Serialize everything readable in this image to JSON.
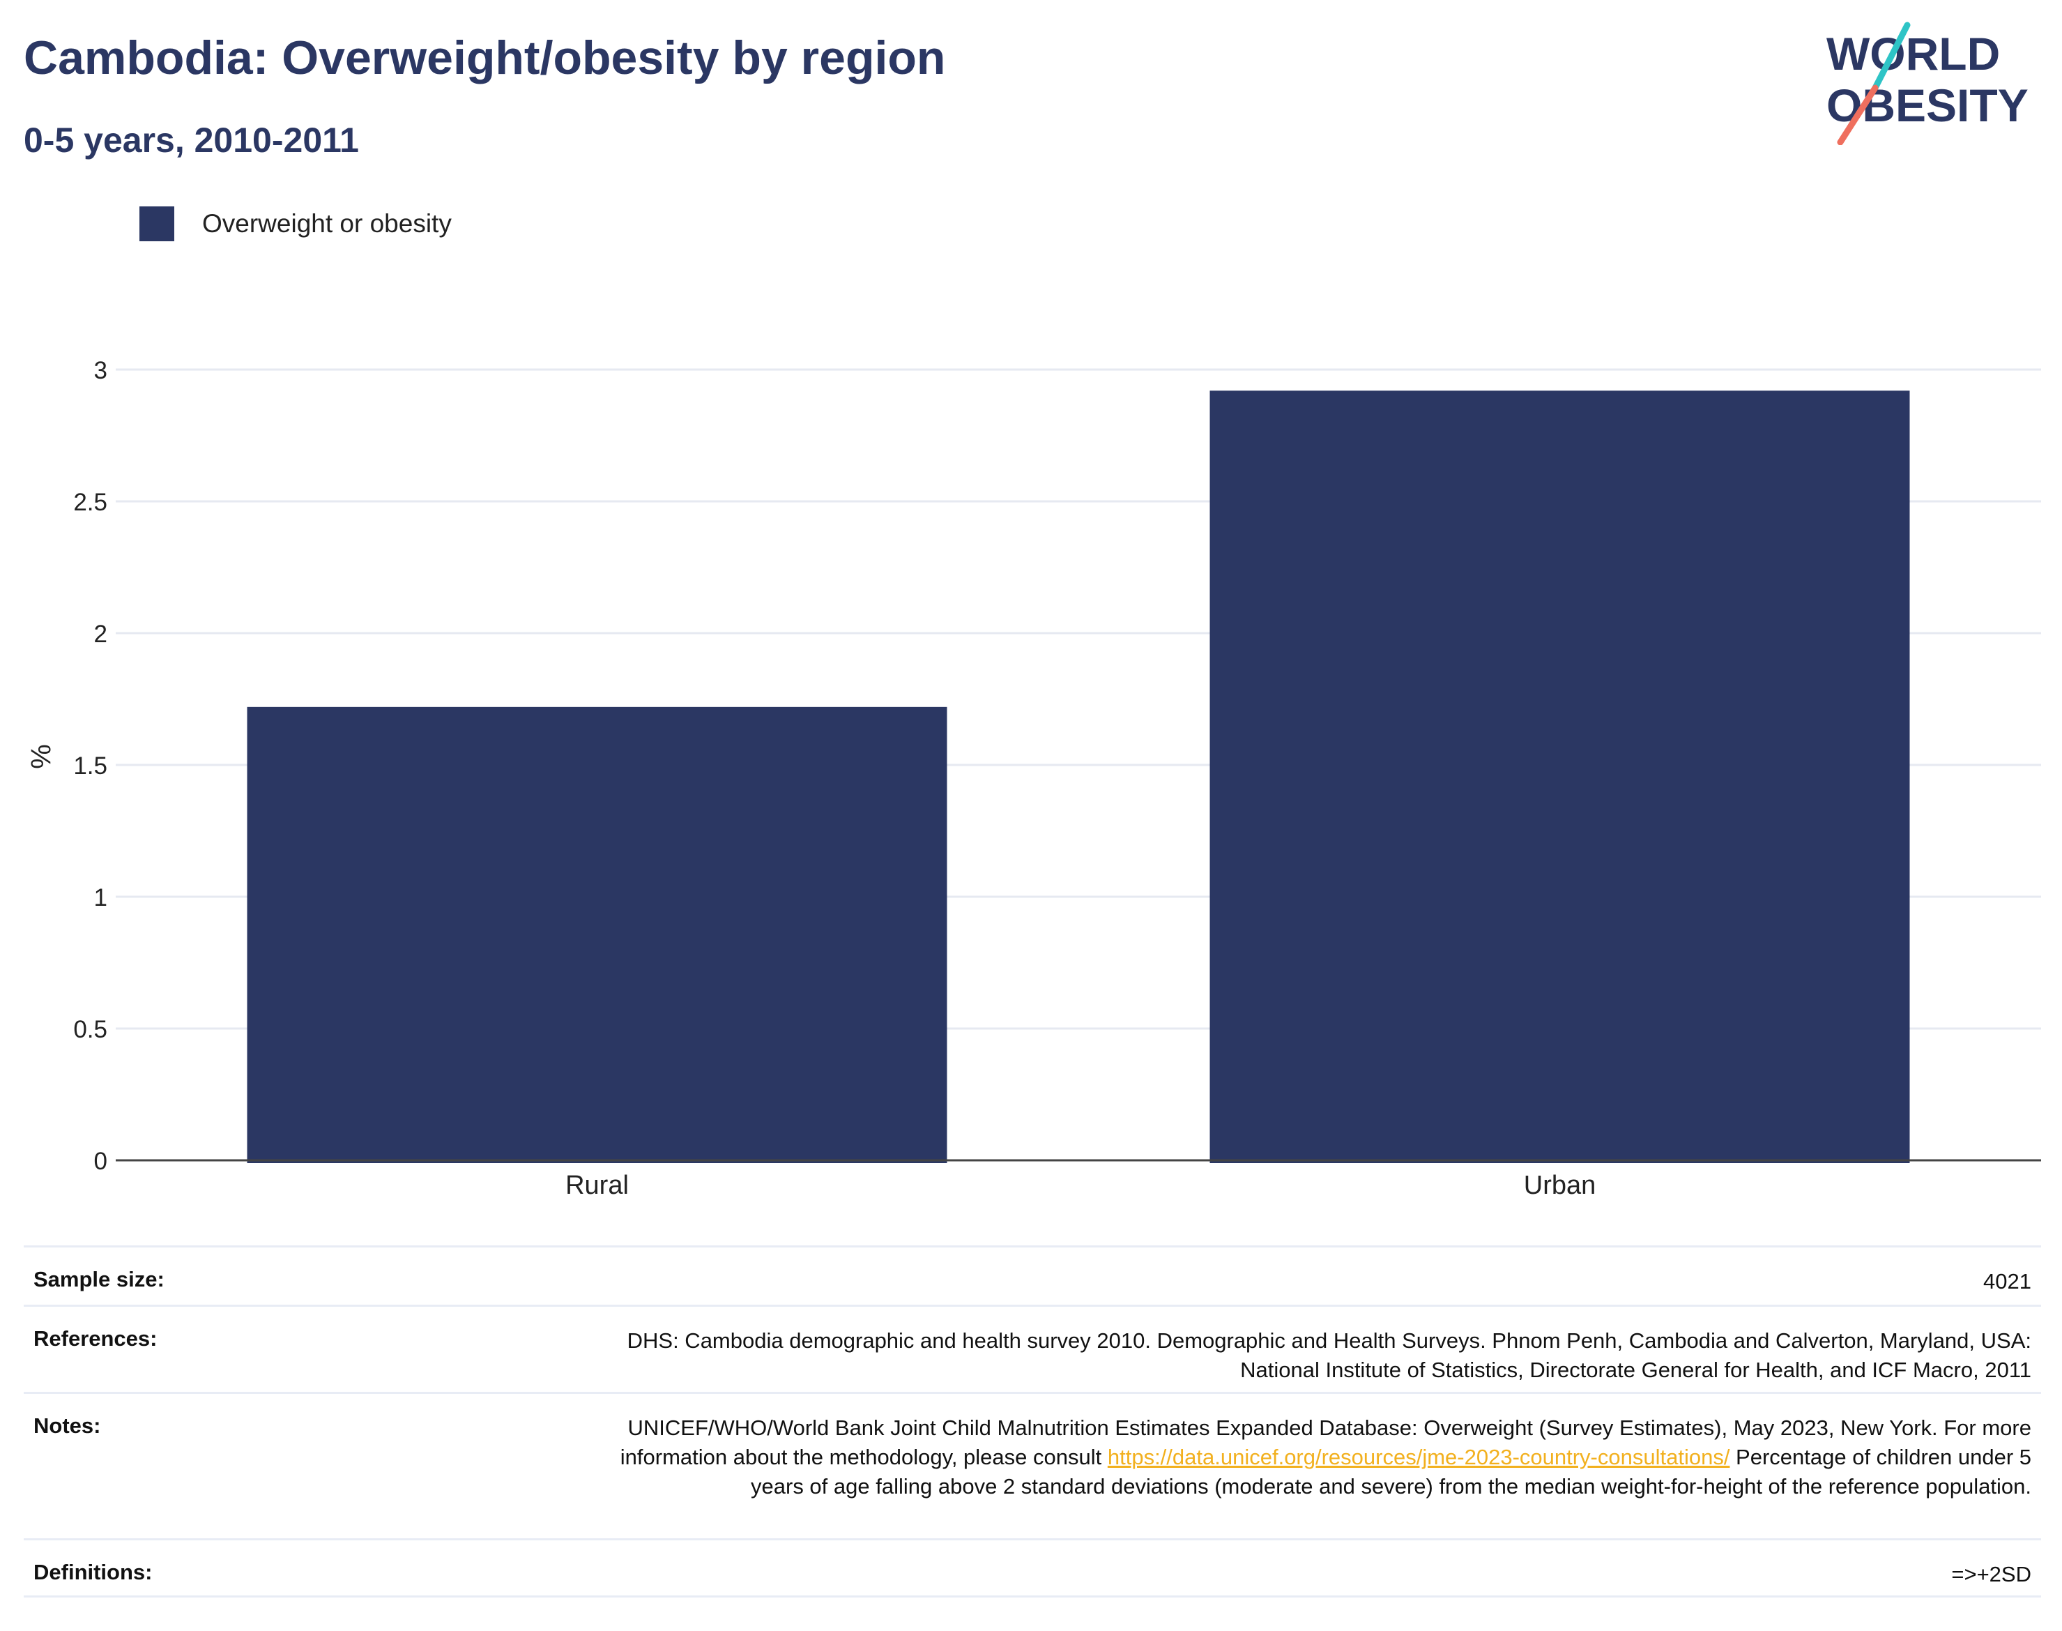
{
  "header": {
    "title": "Cambodia: Overweight/obesity by region",
    "subtitle": "0-5 years, 2010-2011"
  },
  "logo": {
    "line1": "WORLD",
    "line2": "OBESITY",
    "slash_colors": [
      "#2ec4c6",
      "#ef6f5e"
    ]
  },
  "colors": {
    "bar": "#2b3763",
    "title": "#2b3763",
    "grid": "#e6e9f1",
    "axis": "#444444",
    "link": "#f2b01e"
  },
  "chart_data": {
    "type": "bar",
    "title": "Cambodia: Overweight/obesity by region",
    "subtitle": "0-5 years, 2010-2011",
    "xlabel": "",
    "ylabel": "%",
    "categories": [
      "Rural",
      "Urban"
    ],
    "series": [
      {
        "name": "Overweight or obesity",
        "values": [
          1.72,
          2.92
        ]
      }
    ],
    "ylim": [
      0,
      3
    ],
    "yticks": [
      0,
      0.5,
      1,
      1.5,
      2,
      2.5,
      3
    ],
    "ytick_labels": [
      "0",
      "0.5",
      "1",
      "1.5",
      "2",
      "2.5",
      "3"
    ],
    "grid": true,
    "legend_position": "top-left"
  },
  "info": {
    "sample_size": {
      "label": "Sample size:",
      "value": "4021"
    },
    "references": {
      "label": "References:",
      "value": "DHS: Cambodia demographic and health survey 2010. Demographic and Health Surveys. Phnom Penh, Cambodia and Calverton, Maryland, USA: National Institute of Statistics, Directorate General for Health, and ICF Macro, 2011"
    },
    "notes": {
      "label": "Notes:",
      "text_before": "UNICEF/WHO/World Bank Joint Child Malnutrition Estimates Expanded Database: Overweight (Survey Estimates), May 2023, New York. For more information about the methodology, please consult ",
      "link": "https://data.unicef.org/resources/jme-2023-country-consultations/",
      "text_after": " Percentage of children under 5 years of age falling above 2 standard deviations (moderate and severe) from the median weight-for-height of the reference population."
    },
    "definitions": {
      "label": "Definitions:",
      "value": "=>+2SD"
    }
  }
}
